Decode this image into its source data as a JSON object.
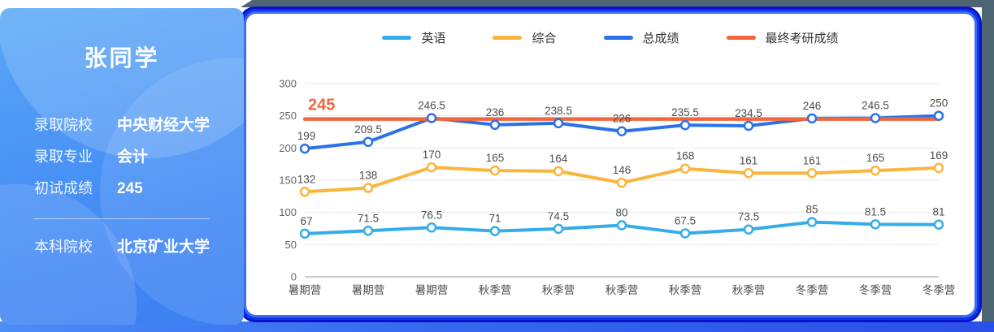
{
  "profile": {
    "title": "张同学",
    "fields": [
      {
        "label": "录取院校",
        "value": "中央财经大学"
      },
      {
        "label": "录取专业",
        "value": "会计"
      },
      {
        "label": "初试成绩",
        "value": "245"
      }
    ],
    "footer_fields": [
      {
        "label": "本科院校",
        "value": "北京矿业大学"
      }
    ]
  },
  "chart_data": {
    "type": "line",
    "title": "",
    "categories": [
      "暑期营",
      "暑期营",
      "暑期营",
      "秋季营",
      "秋季营",
      "秋季营",
      "秋季营",
      "秋季营",
      "冬季营",
      "冬季营",
      "冬季营"
    ],
    "series": [
      {
        "name": "英语",
        "color": "#35ace8",
        "values": [
          67,
          71.5,
          76.5,
          71,
          74.5,
          80,
          67.5,
          73.5,
          85,
          81.5,
          81
        ]
      },
      {
        "name": "综合",
        "color": "#f9b53d",
        "values": [
          132,
          138,
          170,
          165,
          164,
          146,
          168,
          161,
          161,
          165,
          169
        ]
      },
      {
        "name": "总成绩",
        "color": "#2b72e8",
        "values": [
          199,
          209.5,
          246.5,
          236,
          238.5,
          226,
          235.5,
          234.5,
          246,
          246.5,
          250
        ]
      },
      {
        "name": "最终考研成绩",
        "color": "#f2663c",
        "reference_value": 245,
        "reference_label": "245"
      }
    ],
    "ylim": [
      0,
      300
    ],
    "yticks": [
      0,
      50,
      100,
      150,
      200,
      250,
      300
    ],
    "grid": true,
    "legend_position": "top",
    "xlabel": "",
    "ylabel": ""
  },
  "colors": {
    "grid_line": "#e9e9e9",
    "axis_line": "#999999",
    "tick_text": "#666666",
    "value_label": "#4d4d4d",
    "category_text": "#4a4a4a",
    "frame_dark": "#0912c8",
    "frame_bright": "#0f35f0",
    "frame_light": "#3f6ef5",
    "slate": "#4d6472",
    "profile_gradient_top": "#58a7f7",
    "profile_gradient_bottom": "#3d80f2"
  }
}
